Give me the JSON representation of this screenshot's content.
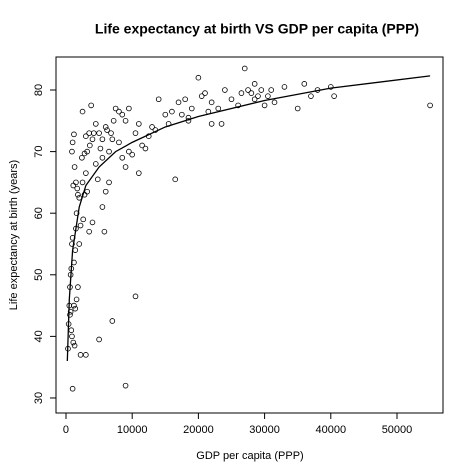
{
  "chart_data": {
    "type": "scatter",
    "title": "Life expectancy at birth VS GDP per capita (PPP)",
    "x_label": "GDP per capita (PPP)",
    "y_label": "Life expectancy at birth (years)",
    "xlim": [
      -1510,
      56950
    ],
    "ylim": [
      27.56,
      85.36
    ],
    "xticks": [
      0,
      10000,
      20000,
      30000,
      40000,
      50000
    ],
    "yticks": [
      30,
      40,
      50,
      60,
      70,
      80
    ],
    "grid": false,
    "series": [
      {
        "type": "scatter",
        "color": "#000000",
        "x": [
          300,
          400,
          500,
          600,
          700,
          800,
          900,
          1000,
          1100,
          1300,
          600,
          700,
          800,
          900,
          1000,
          1200,
          1400,
          1500,
          1600,
          1800,
          1100,
          1300,
          1000,
          1200,
          900,
          1500,
          1700,
          2000,
          2200,
          2000,
          1800,
          1600,
          1400,
          1200,
          2200,
          3000,
          3500,
          4000,
          2600,
          2800,
          3200,
          2500,
          3000,
          2400,
          2800,
          3200,
          3600,
          4000,
          4200,
          4500,
          3000,
          3500,
          2500,
          3800,
          5000,
          5500,
          6000,
          6200,
          5200,
          5500,
          6500,
          7000,
          4500,
          4800,
          5500,
          5800,
          6000,
          6500,
          6800,
          7200,
          7500,
          8000,
          8500,
          9000,
          9500,
          10000,
          8000,
          8500,
          9000,
          9500,
          10500,
          11000,
          11500,
          12000,
          11000,
          10500,
          7000,
          5000,
          9000,
          12500,
          13000,
          13500,
          14000,
          15000,
          15500,
          16000,
          16500,
          17000,
          17500,
          18000,
          18500,
          19000,
          20000,
          20500,
          21000,
          21500,
          22000,
          23000,
          23500,
          24000,
          25000,
          26000,
          27000,
          27500,
          28000,
          28500,
          29000,
          29500,
          30000,
          30500,
          31000,
          31500,
          33000,
          35000,
          36000,
          37000,
          38000,
          40000,
          40500,
          55000,
          18500,
          22000,
          26500,
          28500
        ],
        "values": [
          38,
          42,
          45,
          43.5,
          44,
          41,
          40,
          31.5,
          39,
          38.5,
          48,
          50,
          51,
          55,
          56,
          52,
          54,
          57.5,
          60,
          63,
          64.5,
          67.5,
          71.5,
          72.8,
          70,
          65,
          64,
          62.5,
          58,
          55,
          48,
          46,
          44.5,
          45,
          37,
          37,
          57,
          58.5,
          59,
          63,
          63.5,
          65,
          66.5,
          69,
          69.7,
          70,
          71,
          72,
          73,
          74.5,
          72.5,
          73,
          76.5,
          77.5,
          73,
          72,
          74,
          73.5,
          70.5,
          69,
          70,
          72,
          68,
          65.5,
          61,
          57,
          63.5,
          65,
          73,
          75,
          77,
          76.5,
          76,
          75,
          70,
          69.5,
          71.5,
          69,
          67.5,
          77,
          73,
          74.5,
          71,
          70.5,
          66.5,
          46.5,
          42.5,
          39.5,
          32,
          72.5,
          74,
          73.5,
          78.5,
          76,
          74.5,
          76.5,
          65.5,
          78,
          76,
          78.5,
          75.5,
          77,
          82,
          79,
          79.5,
          76.5,
          74.5,
          77,
          74.5,
          80,
          78.5,
          77.5,
          83.5,
          80,
          79.5,
          81,
          79,
          80,
          77.5,
          79,
          80,
          78,
          80.5,
          77,
          81,
          79,
          80,
          80.5,
          79,
          77.5,
          75,
          78,
          79.5,
          78.5
        ]
      },
      {
        "type": "line",
        "color": "#000000",
        "x": [
          200,
          500,
          1000,
          2000,
          3000,
          5000,
          7500,
          10000,
          15000,
          20000,
          30000,
          40000,
          55000
        ],
        "values": [
          36,
          46,
          54,
          61,
          64.5,
          67.5,
          70,
          71.5,
          74,
          75.7,
          78.3,
          80.3,
          82.3
        ]
      }
    ]
  }
}
